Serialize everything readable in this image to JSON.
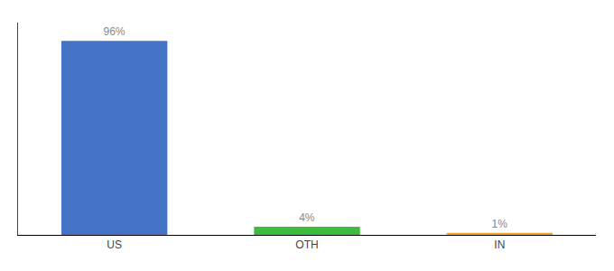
{
  "chart_data": {
    "type": "bar",
    "categories": [
      "US",
      "OTH",
      "IN"
    ],
    "values": [
      96,
      4,
      1
    ],
    "value_labels": [
      "96%",
      "4%",
      "1%"
    ],
    "colors": [
      "#4472c4",
      "#3dbb3d",
      "#f5a623"
    ],
    "data_labels": true,
    "ylim": [
      0,
      105
    ],
    "tick_labels": "x",
    "grid": false
  }
}
